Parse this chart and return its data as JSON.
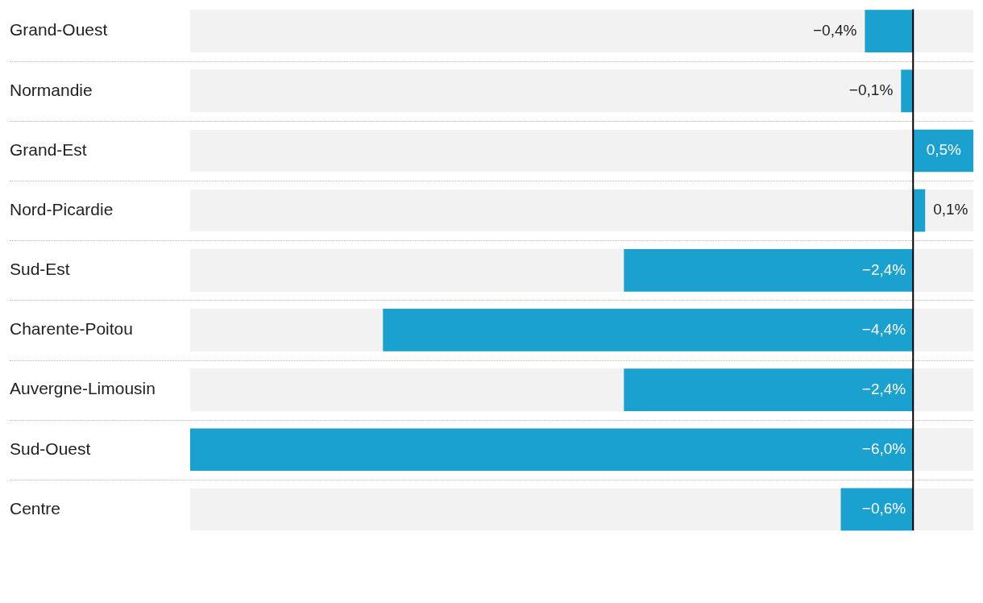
{
  "chart_data": {
    "type": "bar",
    "orientation": "horizontal",
    "tick_labels": "y",
    "categories": [
      "Grand-Ouest",
      "Normandie",
      "Grand-Est",
      "Nord-Picardie",
      "Sud-Est",
      "Charente-Poitou",
      "Auvergne-Limousin",
      "Sud-Ouest",
      "Centre"
    ],
    "values": [
      -0.4,
      -0.1,
      0.5,
      0.1,
      -2.4,
      -4.4,
      -2.4,
      -6.0,
      -0.6
    ],
    "value_labels": [
      "−0,4%",
      "−0,1%",
      "0,5%",
      "0,1%",
      "−2,4%",
      "−4,4%",
      "−2,4%",
      "−6,0%",
      "−0,6%"
    ],
    "color": "#1aa1cf",
    "xlim": [
      -6,
      0.5
    ],
    "ref_lines": [
      {
        "axis": "x",
        "value": 0,
        "color": "#000000"
      }
    ]
  }
}
